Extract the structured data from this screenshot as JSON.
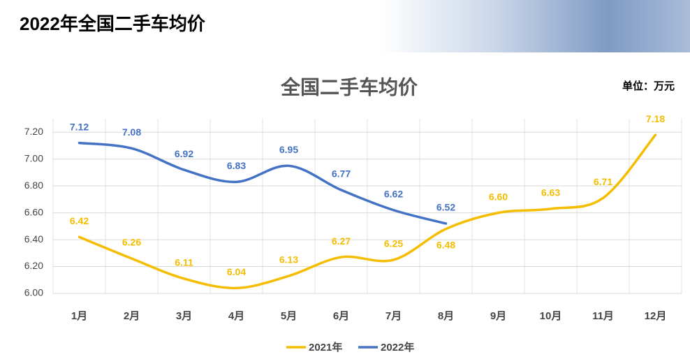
{
  "header": {
    "title": "2022年全国二手车均价"
  },
  "chart_data": {
    "type": "line",
    "title": "全国二手车均价",
    "unit": "单位：万元",
    "categories": [
      "1月",
      "2月",
      "3月",
      "4月",
      "5月",
      "6月",
      "7月",
      "8月",
      "9月",
      "10月",
      "11月",
      "12月"
    ],
    "series": [
      {
        "name": "2021年",
        "color": "#f5bd00",
        "values": [
          6.42,
          6.26,
          6.11,
          6.04,
          6.13,
          6.27,
          6.25,
          6.48,
          6.6,
          6.63,
          6.71,
          7.18
        ],
        "value_labels": [
          "6.42",
          "6.26",
          "6.11",
          "6.04",
          "6.13",
          "6.27",
          "6.25",
          "6.48",
          "6.60",
          "6.63",
          "6.71",
          "7.18"
        ]
      },
      {
        "name": "2022年",
        "color": "#4472c4",
        "values": [
          7.12,
          7.08,
          6.92,
          6.83,
          6.95,
          6.77,
          6.62,
          6.52,
          null,
          null,
          null,
          null
        ],
        "value_labels": [
          "7.12",
          "7.08",
          "6.92",
          "6.83",
          "6.95",
          "6.77",
          "6.62",
          "6.52",
          null,
          null,
          null,
          null
        ]
      }
    ],
    "ylim": [
      6,
      7.3
    ],
    "yticks": [
      {
        "value": 6,
        "label": "6.00"
      },
      {
        "value": 6.2,
        "label": "6.20"
      },
      {
        "value": 6.4,
        "label": "6.40"
      },
      {
        "value": 6.6,
        "label": "6.60"
      },
      {
        "value": 6.8,
        "label": "6.80"
      },
      {
        "value": 7,
        "label": "7.00"
      },
      {
        "value": 7.2,
        "label": "7.20"
      }
    ],
    "grid": true,
    "legend": "bottom"
  }
}
